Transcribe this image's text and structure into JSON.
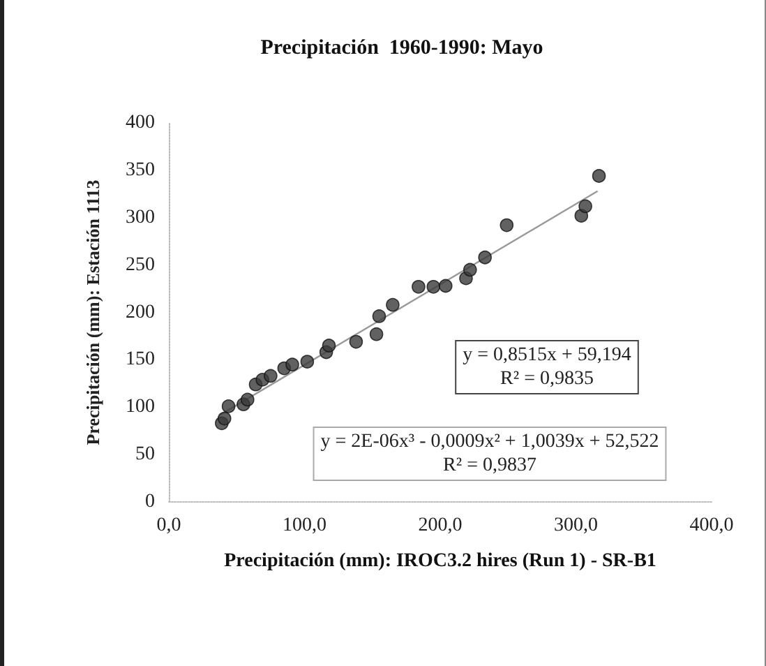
{
  "chart_data": {
    "type": "scatter",
    "title": "Precipitación  1960-1990: Mayo",
    "xlabel": "Precipitación (mm): IROC3.2 hires (Run 1) - SR-B1",
    "ylabel": "Precipitación (mm): Estación 1113",
    "series": [
      {
        "color": "#3a3a3a",
        "marker": "circle",
        "x": [
          39,
          41,
          44,
          55,
          58,
          64,
          69,
          75,
          85,
          91,
          102,
          116,
          118,
          138,
          153,
          155,
          165,
          184,
          195,
          204,
          219,
          222,
          233,
          249,
          304,
          307,
          317
        ],
        "values": [
          83,
          88,
          101,
          103,
          108,
          124,
          129,
          133,
          141,
          145,
          148,
          158,
          165,
          169,
          177,
          196,
          208,
          227,
          227,
          228,
          236,
          245,
          258,
          292,
          302,
          312,
          344
        ]
      },
      {
        "type": "line",
        "color": "#999999",
        "marker": "none",
        "x": [
          38,
          316
        ],
        "values": [
          92,
          328
        ]
      }
    ],
    "xlim": [
      0,
      400
    ],
    "ylim": [
      0,
      400
    ],
    "xticks": [
      {
        "value": 0,
        "label": "0,0"
      },
      {
        "value": 100,
        "label": "100,0"
      },
      {
        "value": 200,
        "label": "200,0"
      },
      {
        "value": 300,
        "label": "300,0"
      },
      {
        "value": 400,
        "label": "400,0"
      }
    ],
    "yticks": [
      0,
      50,
      100,
      150,
      200,
      250,
      300,
      350,
      400
    ],
    "grid": false,
    "annotations": [
      "y = 0,8515x + 59,194\nR² = 0,9835",
      "y = 2E-06x³ - 0,0009x² + 1,0039x + 52,522\nR² = 0,9837"
    ]
  }
}
